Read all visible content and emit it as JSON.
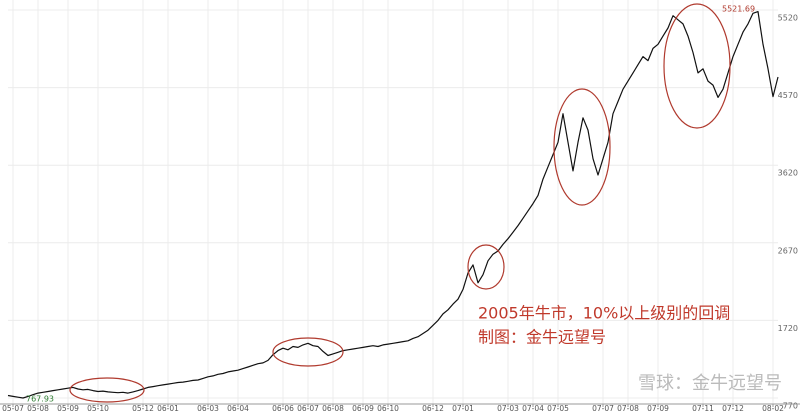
{
  "chart_data": {
    "type": "line",
    "categories": [
      null,
      "05-07",
      null,
      null,
      null,
      null,
      "05-08",
      null,
      null,
      null,
      null,
      null,
      "05-09",
      null,
      null,
      null,
      null,
      null,
      "05-10",
      null,
      null,
      null,
      null,
      null,
      null,
      null,
      null,
      "05-12",
      null,
      null,
      null,
      null,
      "06-01",
      null,
      null,
      null,
      null,
      null,
      null,
      null,
      "06-03",
      null,
      null,
      null,
      null,
      null,
      "06-04",
      null,
      null,
      null,
      null,
      null,
      null,
      null,
      null,
      "06-06",
      null,
      null,
      null,
      null,
      "06-07",
      null,
      null,
      null,
      null,
      "06-08",
      null,
      null,
      null,
      null,
      null,
      "06-09",
      null,
      null,
      null,
      null,
      "06-10",
      null,
      null,
      null,
      null,
      null,
      null,
      null,
      null,
      "06-12",
      null,
      null,
      null,
      null,
      null,
      "07-01",
      null,
      null,
      null,
      null,
      null,
      null,
      null,
      null,
      "07-03",
      null,
      null,
      null,
      null,
      "07-04",
      null,
      null,
      null,
      null,
      "07-05",
      null,
      null,
      null,
      null,
      null,
      null,
      null,
      null,
      "07-07",
      null,
      null,
      null,
      null,
      "07-08",
      null,
      null,
      null,
      null,
      null,
      "07-09",
      null,
      null,
      null,
      null,
      null,
      null,
      null,
      null,
      "07-11",
      null,
      null,
      null,
      null,
      null,
      "07-12",
      null,
      null,
      null,
      null,
      null,
      null,
      null,
      "08-02",
      null
    ],
    "values": [
      800,
      790,
      780,
      770,
      790,
      810,
      830,
      840,
      850,
      860,
      870,
      880,
      890,
      900,
      880,
      870,
      875,
      860,
      850,
      855,
      845,
      840,
      835,
      840,
      830,
      845,
      860,
      880,
      900,
      910,
      920,
      930,
      940,
      950,
      960,
      965,
      975,
      985,
      990,
      1010,
      1030,
      1040,
      1060,
      1070,
      1090,
      1100,
      1110,
      1130,
      1150,
      1170,
      1190,
      1200,
      1230,
      1300,
      1350,
      1380,
      1360,
      1400,
      1390,
      1420,
      1440,
      1410,
      1400,
      1340,
      1290,
      1310,
      1330,
      1350,
      1360,
      1370,
      1380,
      1390,
      1400,
      1410,
      1400,
      1420,
      1430,
      1440,
      1450,
      1460,
      1470,
      1500,
      1520,
      1560,
      1600,
      1660,
      1720,
      1800,
      1850,
      1920,
      1980,
      2100,
      2300,
      2400,
      2180,
      2280,
      2450,
      2530,
      2570,
      2650,
      2720,
      2800,
      2880,
      2970,
      3060,
      3150,
      3250,
      3450,
      3600,
      3750,
      3900,
      4250,
      3900,
      3550,
      3900,
      4200,
      4050,
      3700,
      3500,
      3700,
      3900,
      4250,
      4400,
      4550,
      4650,
      4750,
      4850,
      4950,
      4900,
      5050,
      5100,
      5200,
      5300,
      5450,
      5400,
      5350,
      5200,
      5000,
      4750,
      4800,
      4650,
      4600,
      4450,
      4550,
      4750,
      4950,
      5100,
      5250,
      5350,
      5480,
      5500,
      5100,
      4800,
      4460,
      4700
    ],
    "color": "#111111",
    "ylim": [
      770,
      5520
    ],
    "yticks": [
      770,
      1720,
      2670,
      3620,
      4570,
      5520
    ],
    "grid": true,
    "annotations": [
      "5521.69",
      "767.93",
      "2005年牛市，10%以上级别的回调",
      "制图：金牛远望号"
    ],
    "watermark": "雪球：金牛远望号"
  }
}
